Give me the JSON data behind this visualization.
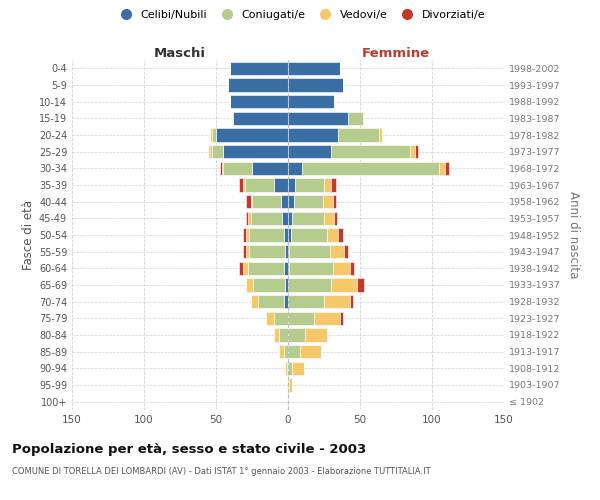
{
  "age_groups": [
    "100+",
    "95-99",
    "90-94",
    "85-89",
    "80-84",
    "75-79",
    "70-74",
    "65-69",
    "60-64",
    "55-59",
    "50-54",
    "45-49",
    "40-44",
    "35-39",
    "30-34",
    "25-29",
    "20-24",
    "15-19",
    "10-14",
    "5-9",
    "0-4"
  ],
  "birth_years": [
    "≤ 1902",
    "1903-1907",
    "1908-1912",
    "1913-1917",
    "1918-1922",
    "1923-1927",
    "1928-1932",
    "1933-1937",
    "1938-1942",
    "1943-1947",
    "1948-1952",
    "1953-1957",
    "1958-1962",
    "1963-1967",
    "1968-1972",
    "1973-1977",
    "1978-1982",
    "1983-1987",
    "1988-1992",
    "1993-1997",
    "1998-2002"
  ],
  "colors": {
    "celibi": "#3A6EA5",
    "coniugati": "#B5CC8E",
    "vedovi": "#F5C96A",
    "divorziati": "#C0392B"
  },
  "male": {
    "celibi": [
      0,
      0,
      0,
      0,
      0,
      0,
      3,
      2,
      3,
      2,
      3,
      4,
      5,
      10,
      25,
      45,
      50,
      38,
      40,
      42,
      40
    ],
    "coniugati": [
      0,
      0,
      1,
      3,
      6,
      10,
      18,
      22,
      25,
      25,
      24,
      22,
      20,
      20,
      20,
      8,
      3,
      1,
      0,
      0,
      0
    ],
    "vedovi": [
      0,
      0,
      1,
      3,
      4,
      5,
      5,
      5,
      3,
      2,
      2,
      2,
      1,
      1,
      1,
      1,
      1,
      0,
      0,
      0,
      0
    ],
    "divorziati": [
      0,
      0,
      0,
      0,
      0,
      0,
      0,
      0,
      3,
      2,
      2,
      1,
      3,
      3,
      1,
      1,
      0,
      0,
      0,
      0,
      0
    ]
  },
  "female": {
    "nubili": [
      0,
      0,
      0,
      0,
      0,
      0,
      0,
      0,
      1,
      1,
      2,
      3,
      4,
      5,
      10,
      30,
      35,
      42,
      32,
      38,
      36
    ],
    "coniugate": [
      0,
      1,
      3,
      8,
      12,
      18,
      25,
      30,
      30,
      28,
      25,
      22,
      20,
      20,
      95,
      55,
      28,
      10,
      0,
      0,
      0
    ],
    "vedove": [
      0,
      2,
      8,
      15,
      15,
      18,
      18,
      18,
      12,
      10,
      8,
      7,
      7,
      5,
      4,
      3,
      2,
      1,
      0,
      0,
      0
    ],
    "divorziate": [
      0,
      0,
      0,
      0,
      0,
      2,
      2,
      5,
      3,
      3,
      3,
      2,
      2,
      3,
      3,
      2,
      0,
      0,
      0,
      0,
      0
    ]
  },
  "xlim": 150,
  "title": "Popolazione per età, sesso e stato civile - 2003",
  "subtitle": "COMUNE DI TORELLA DEI LOMBARDI (AV) - Dati ISTAT 1° gennaio 2003 - Elaborazione TUTTITALIA.IT",
  "xlabel_left": "Maschi",
  "xlabel_right": "Femmine",
  "ylabel_left": "Fasce di età",
  "ylabel_right": "Anni di nascita",
  "legend_labels": [
    "Celibi/Nubili",
    "Coniugati/e",
    "Vedovi/e",
    "Divorziati/e"
  ],
  "bg_color": "#FFFFFF",
  "grid_color": "#CCCCCC",
  "bar_height": 0.8
}
